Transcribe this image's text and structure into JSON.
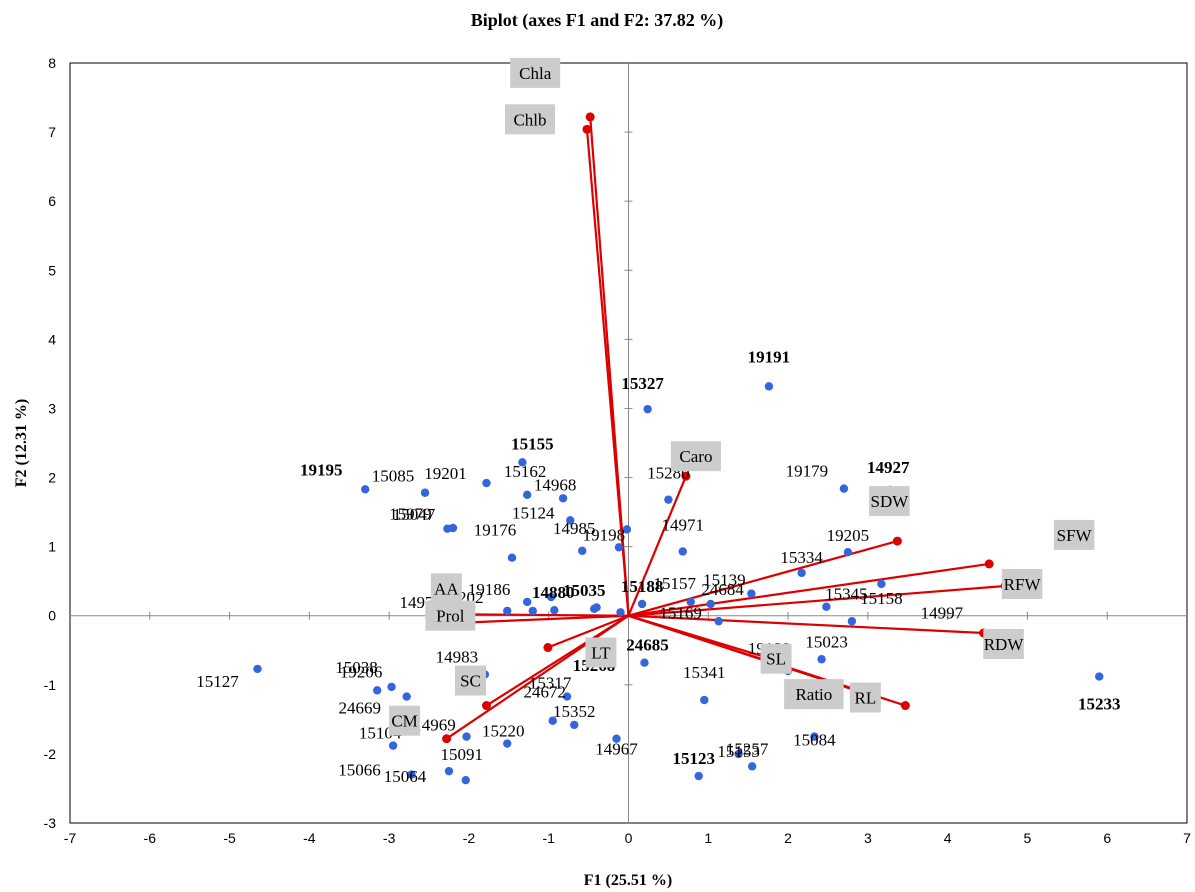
{
  "chart_data": {
    "type": "scatter",
    "title": "Biplot (axes F1 and F2: 37.82 %)",
    "xlabel": "F1 (25.51 %)",
    "ylabel": "F2 (12.31 %)",
    "xlim": [
      -7,
      7
    ],
    "ylim": [
      -3,
      8
    ],
    "xticks": [
      "-7",
      "-6",
      "-5",
      "-4",
      "-3",
      "-2",
      "-1",
      "0",
      "1",
      "2",
      "3",
      "4",
      "5",
      "6",
      "7"
    ],
    "yticks": [
      "-3",
      "-2",
      "-1",
      "0",
      "1",
      "2",
      "3",
      "4",
      "5",
      "6",
      "7",
      "8"
    ],
    "grid": false,
    "colors": {
      "observations": "#3366dd",
      "variables": "#dd0000",
      "label_box": "#cccccc"
    },
    "variables": [
      {
        "name": "Chla",
        "x": -0.48,
        "y": 7.22
      },
      {
        "name": "Chlb",
        "x": -0.52,
        "y": 7.04
      },
      {
        "name": "Caro",
        "x": 0.72,
        "y": 2.02
      },
      {
        "name": "SDW",
        "x": 3.37,
        "y": 1.08
      },
      {
        "name": "SFW",
        "x": 4.52,
        "y": 0.75
      },
      {
        "name": "RFW",
        "x": 4.72,
        "y": 0.43
      },
      {
        "name": "RDW",
        "x": 4.45,
        "y": -0.25
      },
      {
        "name": "RL",
        "x": 3.47,
        "y": -1.3
      },
      {
        "name": "Ratio",
        "x": 2.95,
        "y": -1.12
      },
      {
        "name": "SL",
        "x": 1.95,
        "y": -0.68
      },
      {
        "name": "AA",
        "x": -2.02,
        "y": 0.02
      },
      {
        "name": "Prol",
        "x": -2.07,
        "y": -0.1
      },
      {
        "name": "LT",
        "x": -1.01,
        "y": -0.46
      },
      {
        "name": "SC",
        "x": -1.78,
        "y": -1.3
      },
      {
        "name": "CM",
        "x": -2.28,
        "y": -1.78
      }
    ],
    "observations": [
      {
        "label": "19191",
        "x": 1.76,
        "y": 3.32,
        "bold": true
      },
      {
        "label": "15327",
        "x": 0.24,
        "y": 2.99,
        "bold": true
      },
      {
        "label": "14927",
        "x": 3.28,
        "y": 1.82,
        "bold": true
      },
      {
        "label": "19179",
        "x": 2.7,
        "y": 1.84
      },
      {
        "label": "19205",
        "x": 2.75,
        "y": 0.92
      },
      {
        "label": "15158",
        "x": 3.17,
        "y": 0.46
      },
      {
        "label": "15334",
        "x": 2.17,
        "y": 0.62
      },
      {
        "label": "15345",
        "x": 2.48,
        "y": 0.13
      },
      {
        "label": "15139",
        "x": 1.54,
        "y": 0.32
      },
      {
        "label": "24684",
        "x": 1.03,
        "y": 0.17
      },
      {
        "label": "15157",
        "x": 0.78,
        "y": 0.2
      },
      {
        "label": "14971",
        "x": 0.68,
        "y": 0.93
      },
      {
        "label": "15280",
        "x": 0.5,
        "y": 1.68
      },
      {
        "label": "15188",
        "x": 0.17,
        "y": 0.17,
        "bold": true
      },
      {
        "label": "15233",
        "x": 5.9,
        "y": -0.88,
        "bold": true
      },
      {
        "label": "14997",
        "x": 2.8,
        "y": -0.08
      },
      {
        "label": "15023",
        "x": 2.42,
        "y": -0.63
      },
      {
        "label": "19180",
        "x": 2.0,
        "y": -0.8
      },
      {
        "label": "15084",
        "x": 2.33,
        "y": -1.75
      },
      {
        "label": "15153",
        "x": 1.38,
        "y": -2.0
      },
      {
        "label": "15257",
        "x": 1.55,
        "y": -2.18
      },
      {
        "label": "15169",
        "x": 1.13,
        "y": -0.08
      },
      {
        "label": "15123",
        "x": 0.88,
        "y": -2.32,
        "bold": true
      },
      {
        "label": "15341",
        "x": 0.95,
        "y": -1.22
      },
      {
        "label": "24685",
        "x": 0.2,
        "y": -0.68,
        "bold": true
      },
      {
        "label": "14967",
        "x": -0.15,
        "y": -1.78
      },
      {
        "label": "15268",
        "x": -0.22,
        "y": -0.7,
        "bold": true
      },
      {
        "label": "15317",
        "x": -0.77,
        "y": -1.17
      },
      {
        "label": "24672",
        "x": -0.95,
        "y": -1.52
      },
      {
        "label": "15352",
        "x": -0.68,
        "y": -1.58
      },
      {
        "label": "15220",
        "x": -1.52,
        "y": -1.85
      },
      {
        "label": "14969",
        "x": -2.03,
        "y": -1.75
      },
      {
        "label": "15091",
        "x": -2.04,
        "y": -2.38
      },
      {
        "label": "14983",
        "x": -1.8,
        "y": -0.85
      },
      {
        "label": "15035",
        "x": -0.43,
        "y": 0.1,
        "bold": true
      },
      {
        "label": "14880",
        "x": -0.93,
        "y": 0.08,
        "bold": true
      },
      {
        "label": "15155",
        "x": -1.33,
        "y": 2.22,
        "bold": true
      },
      {
        "label": "19195",
        "x": -3.3,
        "y": 1.83,
        "bold": true
      },
      {
        "label": "15085",
        "x": -2.55,
        "y": 1.78
      },
      {
        "label": "19201",
        "x": -1.78,
        "y": 1.92
      },
      {
        "label": "15162",
        "x": -1.27,
        "y": 1.75
      },
      {
        "label": "14968",
        "x": -0.82,
        "y": 1.7
      },
      {
        "label": "15124",
        "x": -0.73,
        "y": 1.38
      },
      {
        "label": "15979",
        "x": -2.27,
        "y": 1.26
      },
      {
        "label": "15047",
        "x": -2.2,
        "y": 1.27
      },
      {
        "label": "14985",
        "x": -0.58,
        "y": 0.94
      },
      {
        "label": "19176",
        "x": -1.46,
        "y": 0.84
      },
      {
        "label": "19198",
        "x": -0.12,
        "y": 0.99
      },
      {
        "label": "19186",
        "x": -1.27,
        "y": 0.2
      },
      {
        "label": "14970",
        "x": -1.2,
        "y": 0.07
      },
      {
        "label": "15202",
        "x": -1.52,
        "y": 0.07
      },
      {
        "label": "15127",
        "x": -4.65,
        "y": -0.77
      },
      {
        "label": "15038",
        "x": -2.97,
        "y": -1.03
      },
      {
        "label": "19206",
        "x": -3.15,
        "y": -1.08
      },
      {
        "label": "24669",
        "x": -2.78,
        "y": -1.17
      },
      {
        "label": "15104",
        "x": -2.95,
        "y": -1.88
      },
      {
        "label": "15066",
        "x": -2.72,
        "y": -2.3
      },
      {
        "label": "15064",
        "x": -2.25,
        "y": -2.25
      }
    ],
    "extra_points": [
      {
        "x": -0.02,
        "y": 1.25
      },
      {
        "x": -0.1,
        "y": 0.05
      },
      {
        "x": -0.4,
        "y": 0.12
      },
      {
        "x": -0.97,
        "y": 0.27
      }
    ]
  }
}
